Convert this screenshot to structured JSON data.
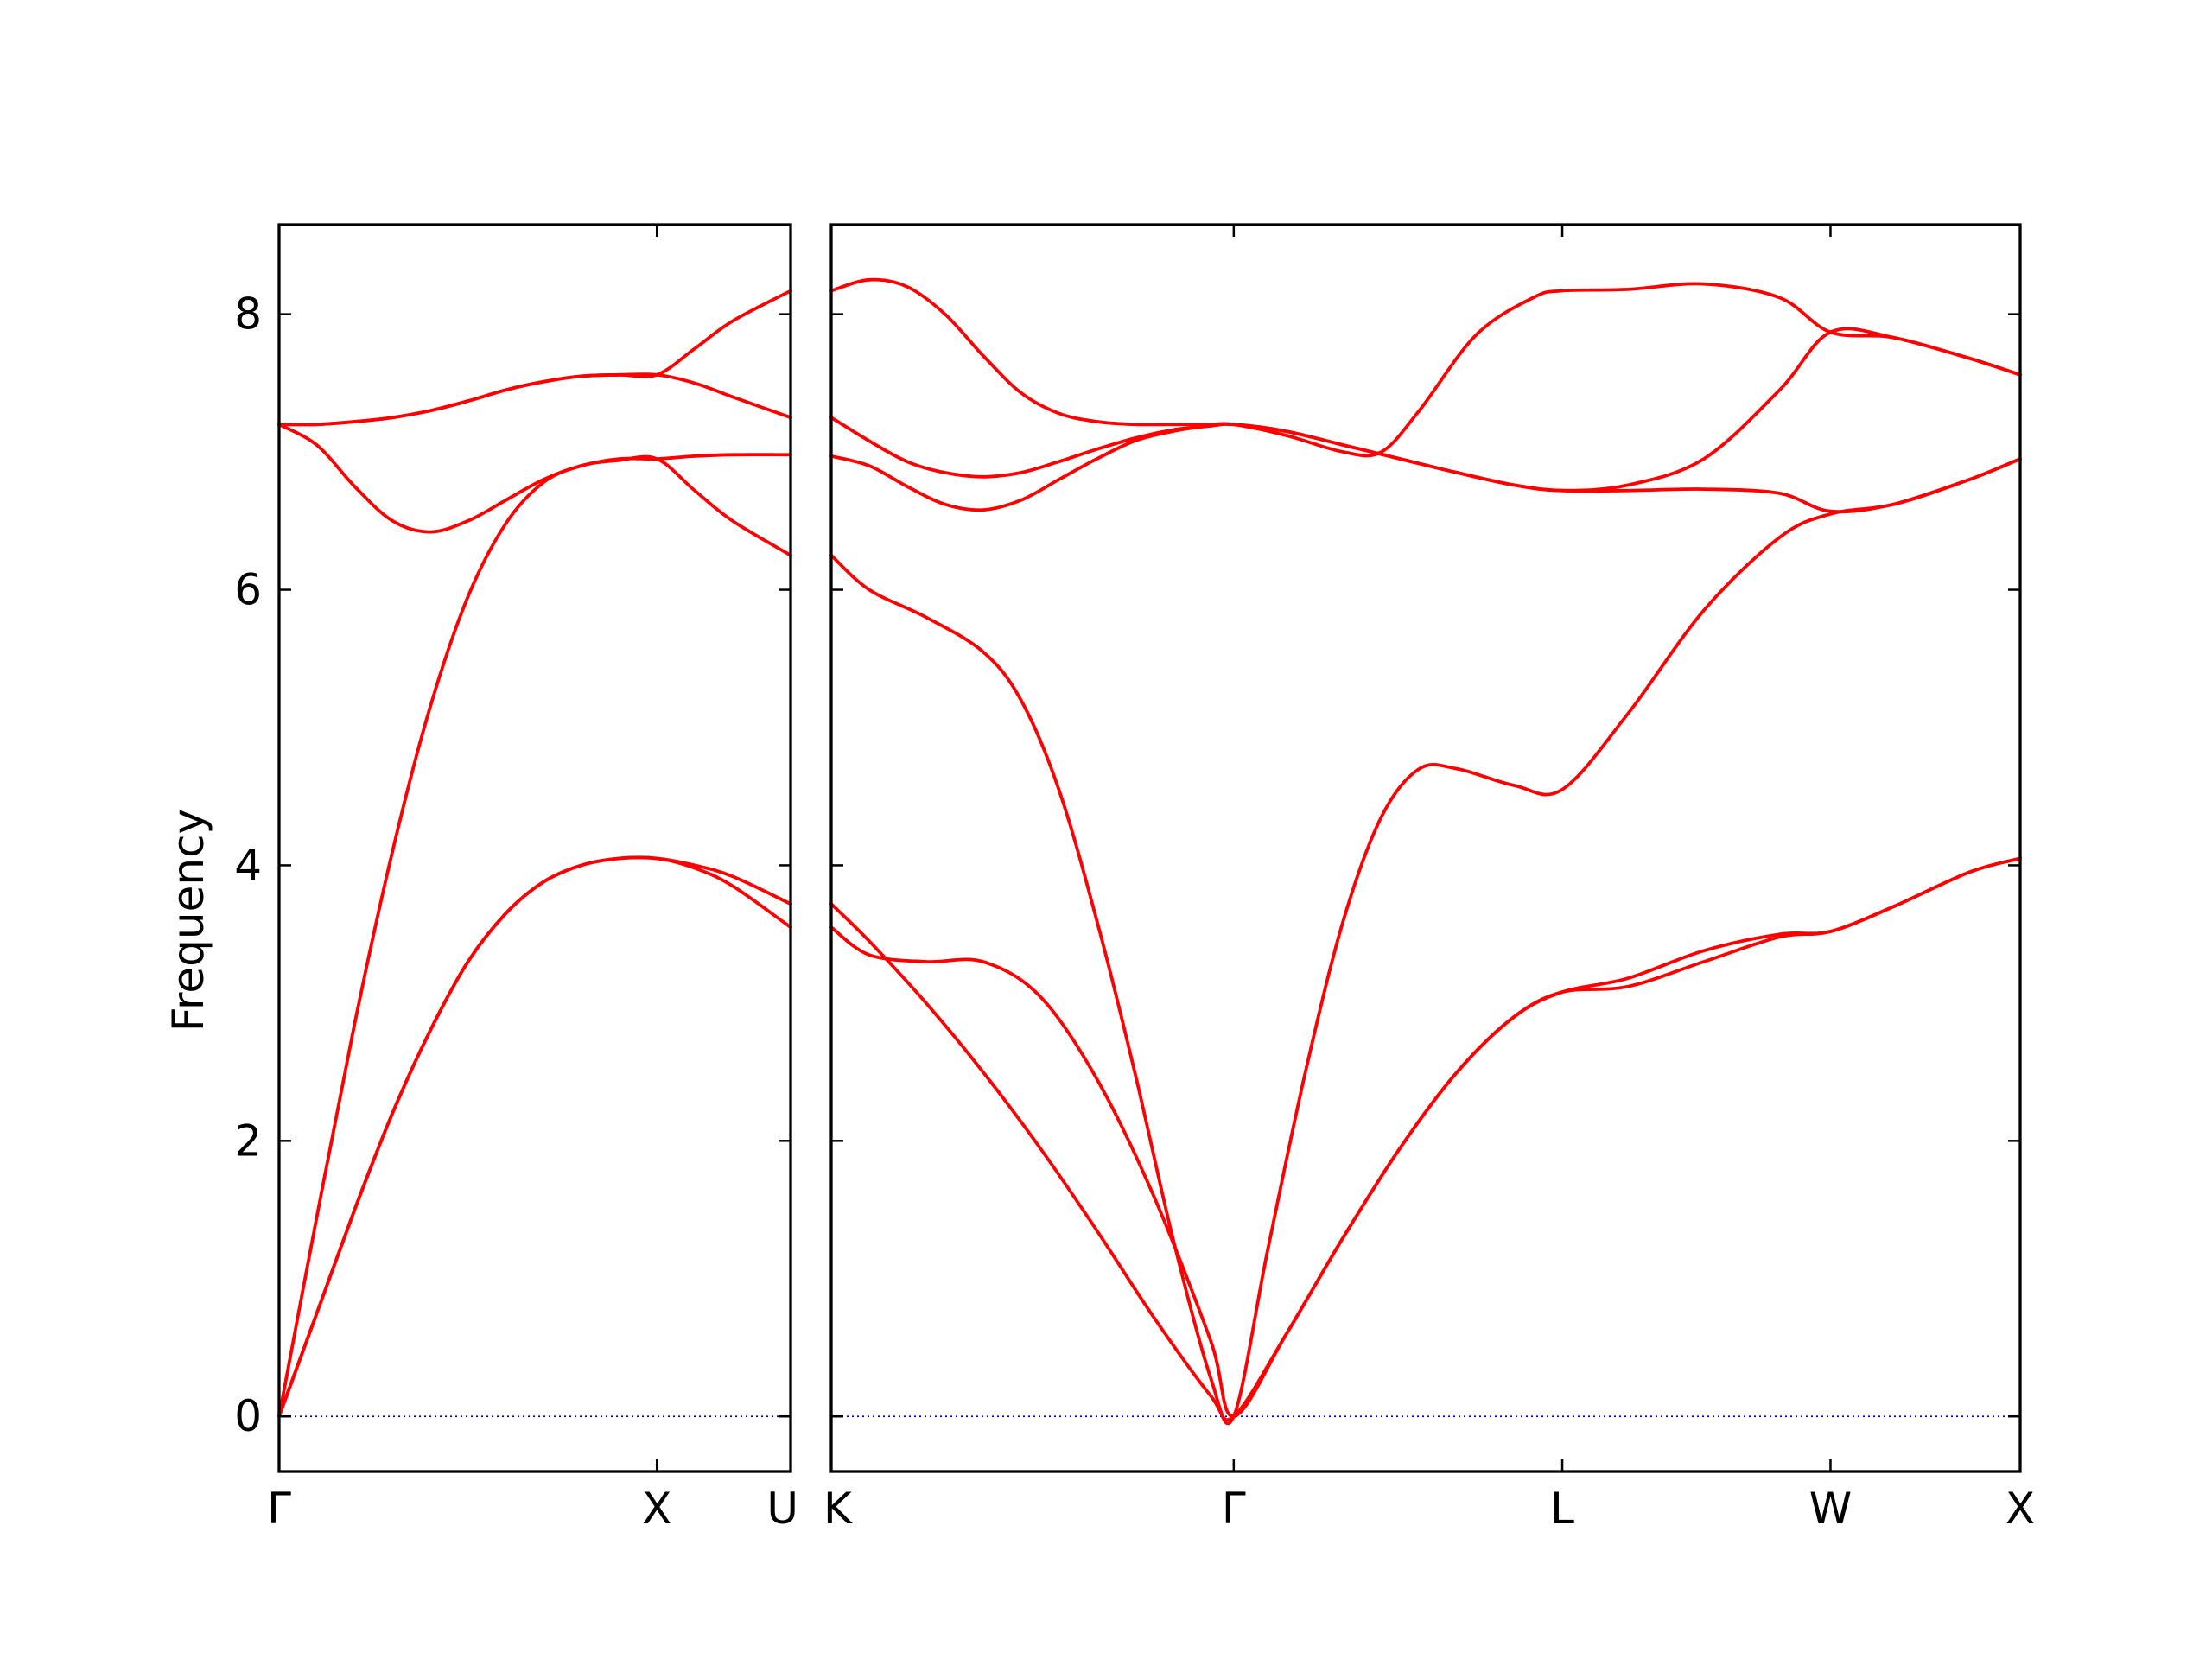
{
  "chart_data": {
    "type": "line",
    "ylabel": "Frequency",
    "ylim": [
      -0.4,
      8.65
    ],
    "yticks": [
      0,
      2,
      4,
      6,
      8
    ],
    "grid": false,
    "colors": {
      "bands": "#ff0000",
      "zero_line": "#0000cc",
      "axes": "#000000"
    },
    "panels": [
      {
        "id": "left",
        "xticks": [
          {
            "x": 0,
            "label": "Γ"
          },
          {
            "x": 1,
            "label": "X"
          },
          {
            "x": 1.354,
            "label": "U"
          }
        ],
        "xlim": [
          0,
          1.354
        ],
        "series": [
          {
            "x": [
              0,
              0.1,
              0.2,
              0.3,
              0.4,
              0.5,
              0.6,
              0.7,
              0.8,
              0.9,
              1.0,
              1.1,
              1.2,
              1.354
            ],
            "values": [
              0,
              0.75,
              1.5,
              2.2,
              2.8,
              3.3,
              3.65,
              3.88,
              4.0,
              4.05,
              4.05,
              3.98,
              3.85,
              3.55
            ]
          },
          {
            "x": [
              0,
              0.1,
              0.2,
              0.3,
              0.4,
              0.5,
              0.6,
              0.7,
              0.8,
              0.9,
              1.0,
              1.1,
              1.2,
              1.354
            ],
            "values": [
              0,
              0.75,
              1.5,
              2.2,
              2.8,
              3.3,
              3.65,
              3.88,
              4.0,
              4.05,
              4.05,
              4.0,
              3.92,
              3.72
            ]
          },
          {
            "x": [
              0,
              0.1,
              0.2,
              0.3,
              0.4,
              0.5,
              0.6,
              0.7,
              0.8,
              0.9,
              1.0,
              1.1,
              1.2,
              1.354
            ],
            "values": [
              0,
              1.45,
              2.85,
              4.1,
              5.15,
              5.95,
              6.48,
              6.78,
              6.9,
              6.94,
              6.95,
              6.72,
              6.5,
              6.25
            ]
          },
          {
            "x": [
              0,
              0.1,
              0.2,
              0.3,
              0.4,
              0.5,
              0.6,
              0.7,
              0.8,
              0.9,
              1.0,
              1.1,
              1.2,
              1.354
            ],
            "values": [
              7.2,
              7.05,
              6.75,
              6.5,
              6.42,
              6.5,
              6.65,
              6.8,
              6.9,
              6.95,
              6.95,
              6.97,
              6.98,
              6.98
            ]
          },
          {
            "x": [
              0,
              0.1,
              0.2,
              0.3,
              0.4,
              0.5,
              0.6,
              0.7,
              0.8,
              0.9,
              1.0,
              1.1,
              1.2,
              1.354
            ],
            "values": [
              7.2,
              7.2,
              7.22,
              7.25,
              7.3,
              7.37,
              7.45,
              7.51,
              7.55,
              7.56,
              7.56,
              7.5,
              7.4,
              7.25
            ]
          },
          {
            "x": [
              0,
              0.1,
              0.2,
              0.3,
              0.4,
              0.5,
              0.6,
              0.7,
              0.8,
              0.9,
              1.0,
              1.1,
              1.2,
              1.354
            ],
            "values": [
              7.2,
              7.2,
              7.22,
              7.25,
              7.3,
              7.37,
              7.45,
              7.51,
              7.55,
              7.56,
              7.56,
              7.75,
              7.95,
              8.17
            ]
          }
        ]
      },
      {
        "id": "right",
        "xticks": [
          {
            "x": 0,
            "label": "K"
          },
          {
            "x": 1.061,
            "label": "Γ"
          },
          {
            "x": 1.927,
            "label": "L"
          },
          {
            "x": 2.634,
            "label": "W"
          },
          {
            "x": 3.134,
            "label": "X"
          }
        ],
        "xlim": [
          0,
          3.134
        ],
        "series": [
          {
            "x": [
              0,
              0.1,
              0.25,
              0.4,
              0.55,
              0.7,
              0.85,
              1.0,
              1.061,
              1.2,
              1.35,
              1.5,
              1.65,
              1.8,
              1.927,
              2.1,
              2.3,
              2.5,
              2.634,
              2.8,
              3.0,
              3.134
            ],
            "values": [
              3.72,
              3.45,
              3.0,
              2.5,
              1.95,
              1.35,
              0.72,
              0.15,
              0,
              0.6,
              1.3,
              1.95,
              2.5,
              2.9,
              3.08,
              3.12,
              3.3,
              3.48,
              3.52,
              3.7,
              3.95,
              4.05
            ]
          },
          {
            "x": [
              0,
              0.1,
              0.25,
              0.4,
              0.55,
              0.7,
              0.85,
              1.0,
              1.061,
              1.2,
              1.35,
              1.5,
              1.65,
              1.8,
              1.927,
              2.1,
              2.3,
              2.5,
              2.634,
              2.8,
              3.0,
              3.134
            ],
            "values": [
              3.55,
              3.35,
              3.3,
              3.3,
              3.05,
              2.45,
              1.6,
              0.55,
              0,
              0.6,
              1.3,
              1.95,
              2.5,
              2.9,
              3.08,
              3.18,
              3.38,
              3.5,
              3.52,
              3.7,
              3.95,
              4.05
            ]
          },
          {
            "x": [
              0,
              0.1,
              0.25,
              0.4,
              0.5,
              0.6,
              0.7,
              0.8,
              0.9,
              1.0,
              1.061,
              1.15,
              1.25,
              1.35,
              1.45,
              1.55,
              1.65,
              1.8,
              1.927,
              2.1,
              2.3,
              2.5,
              2.634,
              2.8,
              3.0,
              3.134
            ],
            "values": [
              6.25,
              6.0,
              5.8,
              5.55,
              5.2,
              4.55,
              3.6,
              2.5,
              1.3,
              0.28,
              0,
              1.2,
              2.5,
              3.6,
              4.35,
              4.7,
              4.7,
              4.58,
              4.55,
              5.1,
              5.85,
              6.38,
              6.55,
              6.62,
              6.8,
              6.95
            ]
          },
          {
            "x": [
              0,
              0.1,
              0.2,
              0.3,
              0.4,
              0.5,
              0.6,
              0.7,
              0.8,
              0.9,
              1.0,
              1.061,
              1.2,
              1.35,
              1.5,
              1.65,
              1.8,
              1.927,
              2.1,
              2.3,
              2.5,
              2.634,
              2.8,
              3.0,
              3.134
            ],
            "values": [
              6.97,
              6.9,
              6.75,
              6.62,
              6.58,
              6.65,
              6.8,
              6.95,
              7.08,
              7.15,
              7.19,
              7.2,
              7.15,
              7.05,
              6.95,
              6.85,
              6.76,
              6.72,
              6.72,
              6.73,
              6.7,
              6.57,
              6.62,
              6.8,
              6.95
            ]
          },
          {
            "x": [
              0,
              0.1,
              0.2,
              0.3,
              0.4,
              0.5,
              0.6,
              0.7,
              0.8,
              0.9,
              1.0,
              1.061,
              1.2,
              1.35,
              1.5,
              1.65,
              1.8,
              1.927,
              2.1,
              2.3,
              2.5,
              2.634,
              2.8,
              3.0,
              3.134
            ],
            "values": [
              7.25,
              7.08,
              6.93,
              6.85,
              6.82,
              6.85,
              6.93,
              7.02,
              7.1,
              7.16,
              7.19,
              7.2,
              7.15,
              7.05,
              6.95,
              6.85,
              6.76,
              6.72,
              6.76,
              6.95,
              7.45,
              7.87,
              7.83,
              7.68,
              7.56
            ]
          },
          {
            "x": [
              0,
              0.1,
              0.2,
              0.3,
              0.4,
              0.5,
              0.6,
              0.7,
              0.8,
              0.9,
              1.0,
              1.061,
              1.2,
              1.35,
              1.45,
              1.55,
              1.7,
              1.85,
              1.927,
              2.1,
              2.3,
              2.5,
              2.634,
              2.8,
              3.0,
              3.134
            ],
            "values": [
              8.17,
              8.25,
              8.2,
              8.0,
              7.7,
              7.43,
              7.28,
              7.22,
              7.2,
              7.2,
              7.2,
              7.2,
              7.12,
              7.0,
              7.0,
              7.3,
              7.85,
              8.12,
              8.17,
              8.18,
              8.22,
              8.12,
              7.87,
              7.83,
              7.68,
              7.56
            ]
          }
        ]
      }
    ]
  }
}
